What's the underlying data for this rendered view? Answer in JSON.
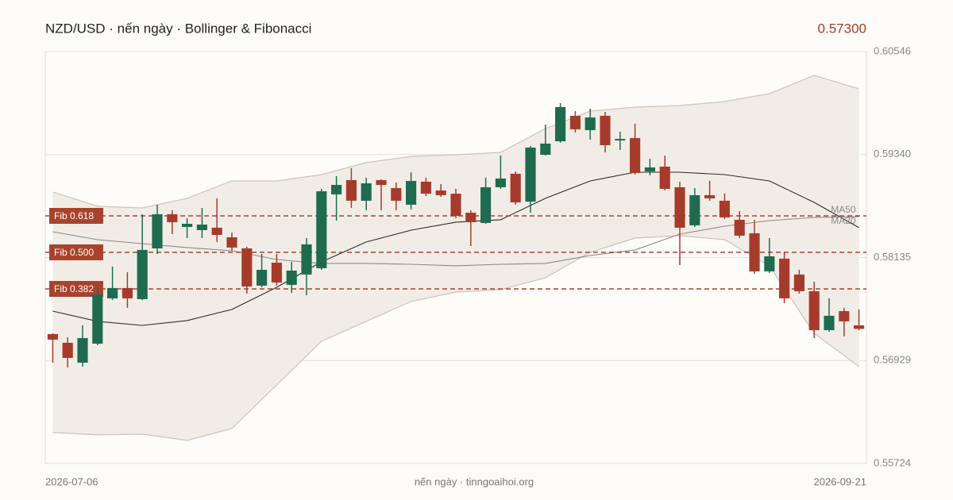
{
  "chart_data": {
    "type": "candlestick",
    "title": "NZD/USD · nến ngày · Bollinger & Fibonacci",
    "price_label": "0.57300",
    "footer": "nến ngày · tinngoaihoi.org",
    "categories": [
      "2026-07-06",
      null,
      null,
      null,
      null,
      null,
      null,
      null,
      null,
      null,
      null,
      null,
      null,
      null,
      null,
      null,
      null,
      null,
      null,
      null,
      null,
      null,
      null,
      null,
      null,
      null,
      null,
      null,
      null,
      null,
      null,
      null,
      null,
      null,
      null,
      null,
      null,
      null,
      null,
      null,
      null,
      null,
      null,
      null,
      null,
      null,
      null,
      null,
      null,
      null,
      null,
      null,
      null,
      null,
      "2026-09-21"
    ],
    "open": [
      0.57239,
      0.57137,
      0.56904,
      0.57127,
      0.57657,
      0.57778,
      0.57648,
      0.58242,
      0.58642,
      0.58493,
      0.58456,
      0.58484,
      0.58372,
      0.58242,
      0.57806,
      0.58075,
      0.57815,
      0.57936,
      0.5801,
      0.58874,
      0.59041,
      0.588,
      0.59041,
      0.58948,
      0.58753,
      0.59023,
      0.5892,
      0.58883,
      0.5866,
      0.5854,
      0.58958,
      0.59116,
      0.5879,
      0.59338,
      0.59496,
      0.59794,
      0.59626,
      0.59794,
      0.59506,
      0.59534,
      0.59143,
      0.59199,
      0.58958,
      0.58512,
      0.58865,
      0.588,
      0.58577,
      0.58419,
      0.57973,
      0.58122,
      0.57936,
      0.57741,
      0.57285,
      0.57508,
      0.57341
    ],
    "high": [
      0.57248,
      0.57202,
      0.57341,
      0.57787,
      0.58029,
      0.57964,
      0.58642,
      0.58753,
      0.58688,
      0.58595,
      0.58716,
      0.58828,
      0.58428,
      0.58261,
      0.58177,
      0.58177,
      0.58084,
      0.58363,
      0.58939,
      0.59088,
      0.59181,
      0.59069,
      0.59051,
      0.59013,
      0.59134,
      0.59069,
      0.58995,
      0.58939,
      0.58688,
      0.59069,
      0.59329,
      0.59143,
      0.59441,
      0.59691,
      0.59942,
      0.59849,
      0.59877,
      0.5984,
      0.59608,
      0.59701,
      0.59292,
      0.59329,
      0.59023,
      0.58948,
      0.59032,
      0.58883,
      0.58679,
      0.58577,
      0.58363,
      0.58196,
      0.57991,
      0.57852,
      0.57657,
      0.57546,
      0.57527
    ],
    "low": [
      0.56904,
      0.56849,
      0.56858,
      0.57109,
      0.57638,
      0.57546,
      0.57638,
      0.58177,
      0.58409,
      0.58363,
      0.58363,
      0.58317,
      0.58214,
      0.57713,
      0.57787,
      0.57806,
      0.57722,
      0.57694,
      0.57991,
      0.58567,
      0.58716,
      0.58688,
      0.58688,
      0.58688,
      0.58697,
      0.58855,
      0.58846,
      0.58595,
      0.5827,
      0.5853,
      0.58939,
      0.58753,
      0.5866,
      0.59329,
      0.59478,
      0.59599,
      0.59515,
      0.59366,
      0.59394,
      0.59106,
      0.59097,
      0.5892,
      0.58047,
      0.58493,
      0.588,
      0.58586,
      0.58363,
      0.57945,
      0.57954,
      0.57601,
      0.57713,
      0.57192,
      0.57267,
      0.57211,
      0.57285
    ],
    "close": [
      0.57174,
      0.5696,
      0.57192,
      0.57703,
      0.57778,
      0.57657,
      0.58224,
      0.58642,
      0.58549,
      0.5853,
      0.58521,
      0.584,
      0.58252,
      0.57796,
      0.57991,
      0.57843,
      0.57982,
      0.58289,
      0.58911,
      0.58985,
      0.588,
      0.59004,
      0.58985,
      0.588,
      0.59032,
      0.58883,
      0.58865,
      0.58623,
      0.58549,
      0.58958,
      0.5906,
      0.58781,
      0.59422,
      0.59469,
      0.59896,
      0.59636,
      0.59775,
      0.5945,
      0.59524,
      0.59125,
      0.5919,
      0.58939,
      0.58484,
      0.58865,
      0.58828,
      0.58605,
      0.58391,
      0.57973,
      0.58149,
      0.57657,
      0.57741,
      0.57285,
      0.57453,
      0.57388,
      0.573
    ],
    "up_color": "#1f6b4f",
    "down_color": "#a63b2c",
    "bands": {
      "at": [
        0,
        3,
        6,
        9,
        12,
        15,
        18,
        21,
        24,
        27,
        30,
        33,
        36,
        39,
        42,
        45,
        48,
        51,
        54
      ],
      "upper": [
        0.58902,
        0.58735,
        0.58716,
        0.58828,
        0.59032,
        0.59032,
        0.59106,
        0.59246,
        0.5932,
        0.59338,
        0.59366,
        0.59645,
        0.59849,
        0.59896,
        0.59914,
        0.59961,
        0.60054,
        0.60267,
        0.6011
      ],
      "lower": [
        0.56087,
        0.56059,
        0.56068,
        0.55994,
        0.56133,
        0.56644,
        0.57155,
        0.57388,
        0.5762,
        0.57731,
        0.57759,
        0.57899,
        0.58196,
        0.58363,
        0.58391,
        0.58344,
        0.58038,
        0.57248,
        0.56858
      ],
      "fill": "#f1ede6",
      "stroke": "#cdc3b5"
    },
    "ma": [
      {
        "name": "MA20",
        "color": "#2b2b2b",
        "at": [
          0,
          3,
          6,
          9,
          12,
          15,
          18,
          21,
          24,
          27,
          30,
          33,
          36,
          39,
          42,
          45,
          48,
          51,
          54
        ],
        "values": [
          0.57508,
          0.57388,
          0.57341,
          0.57397,
          0.57527,
          0.57787,
          0.58084,
          0.58317,
          0.58456,
          0.58549,
          0.58577,
          0.58828,
          0.59032,
          0.59134,
          0.59134,
          0.59106,
          0.59032,
          0.58781,
          0.58484
        ]
      },
      {
        "name": "MA50",
        "color": "#8d8a82",
        "at": [
          0,
          3,
          6,
          9,
          12,
          15,
          18,
          21,
          24,
          27,
          30,
          33,
          36,
          39,
          42,
          45,
          48,
          51,
          54
        ],
        "values": [
          0.58437,
          0.58344,
          0.58298,
          0.58252,
          0.58214,
          0.58112,
          0.58066,
          0.58066,
          0.58056,
          0.58038,
          0.58056,
          0.58066,
          0.58159,
          0.58224,
          0.58409,
          0.58502,
          0.58567,
          0.58605,
          0.58614
        ]
      }
    ],
    "fib": [
      {
        "label": "Fib 0.618",
        "value": 0.58623
      },
      {
        "label": "Fib 0.500",
        "value": 0.58196
      },
      {
        "label": "Fib 0.382",
        "value": 0.57768
      }
    ],
    "fib_color": "#a8432e",
    "ylim": [
      0.55724,
      0.60546
    ],
    "yticks": [
      0.60546,
      {
        "value": 0.5934,
        "label": "0.59340"
      },
      0.58135,
      0.56929,
      0.55724
    ],
    "grid": true
  }
}
